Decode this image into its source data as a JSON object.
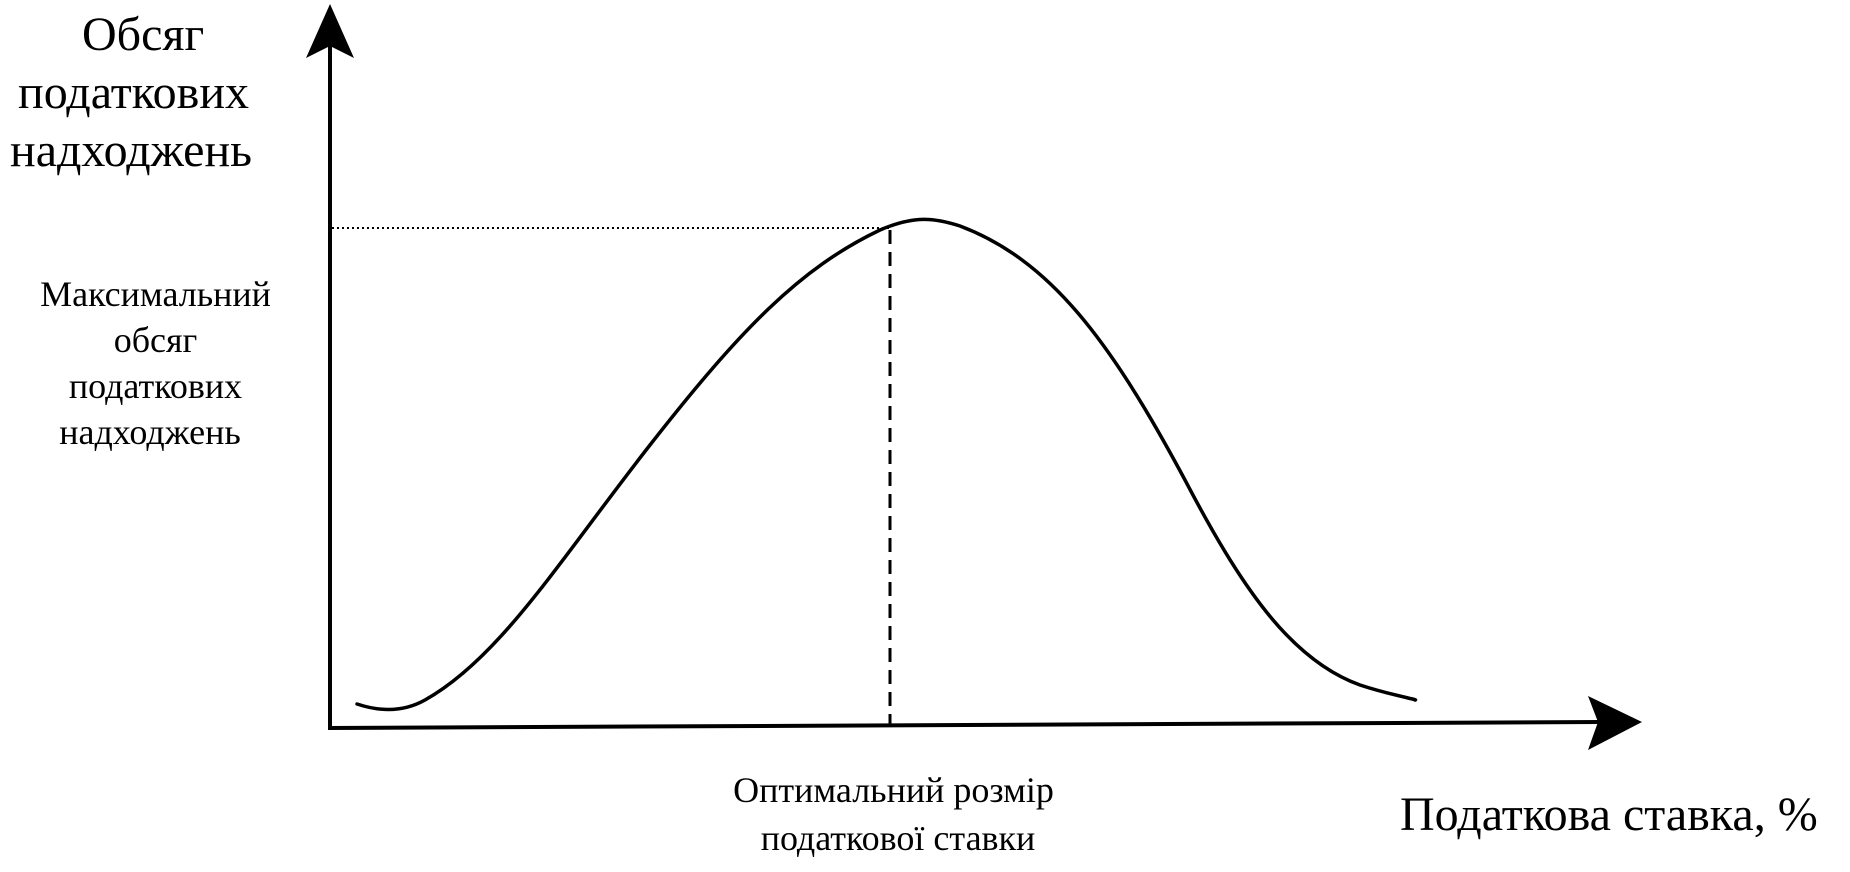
{
  "y_axis_label": {
    "lines": [
      "Обсяг",
      "податкових",
      "надходжень"
    ]
  },
  "x_axis_label": "Податкова ставка, %",
  "max_revenue_label": {
    "lines": [
      "Максимальний",
      "обсяг",
      "податкових",
      "надходжень"
    ]
  },
  "optimal_rate_label": {
    "lines": [
      "Оптимальний розмір",
      "податкової ставки"
    ]
  },
  "colors": {
    "line": "#000000",
    "background": "#ffffff"
  }
}
